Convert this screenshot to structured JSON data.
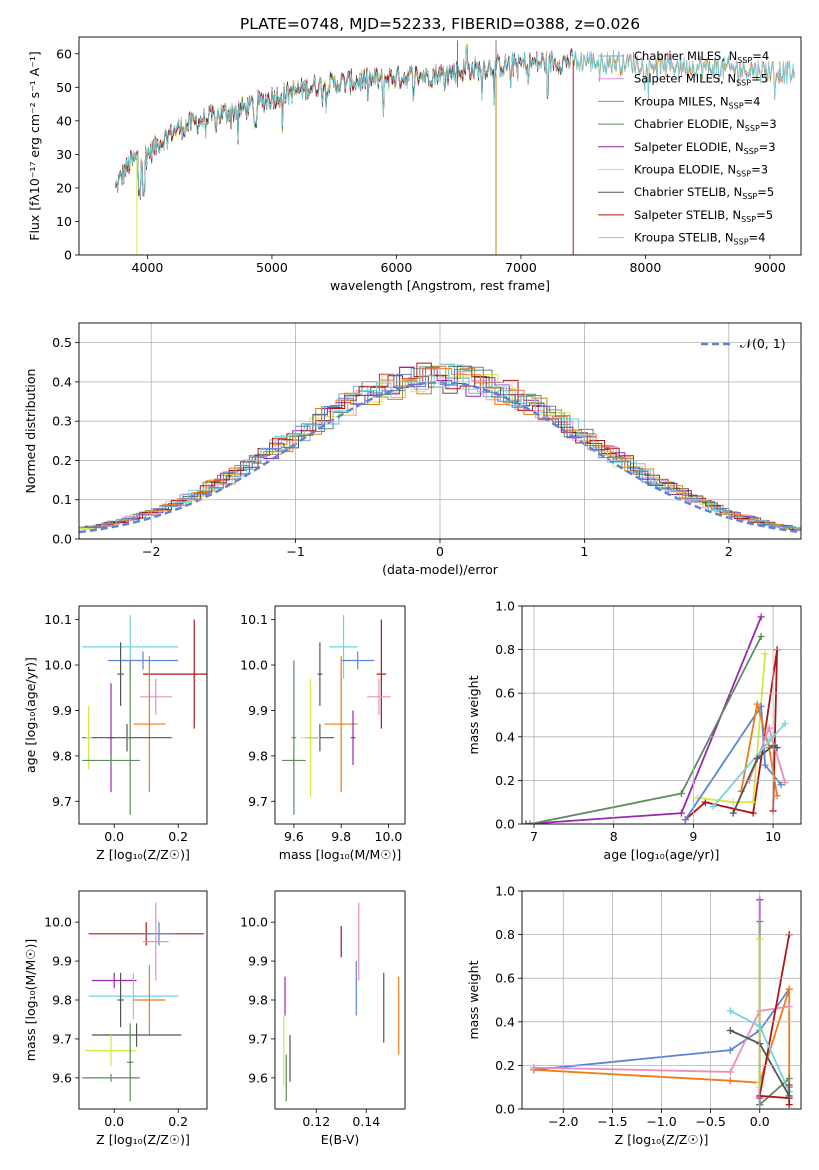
{
  "figure": {
    "title": "PLATE=0748, MJD=52233, FIBERID=0388, z=0.026"
  },
  "colors": {
    "Chabrier MILES": "#7aaed6",
    "Salpeter MILES": "#e88fd0",
    "Kroupa MILES": "#c9861c",
    "Chabrier ELODIE": "#5d8a5d",
    "Salpeter ELODIE": "#9b27b0",
    "Kroupa ELODIE": "#d6e64a",
    "Chabrier STELIB": "#555555",
    "Salpeter STELIB": "#b01515",
    "Kroupa STELIB": "#6fd6dc",
    "mean_blue": "#5b84d8",
    "mean_orange": "#ee7b16",
    "mean_pink": "#ec8fb8",
    "normal": "#5b84d8"
  },
  "chart_data": [
    {
      "id": "spectrum",
      "type": "line",
      "title": "PLATE=0748, MJD=52233, FIBERID=0388, z=0.026",
      "xlabel": "wavelength [Angstrom, rest frame]",
      "ylabel": "Flux [fλ10⁻¹⁷ erg cm⁻² s⁻¹ A⁻¹]",
      "xlim": [
        3450,
        9250
      ],
      "ylim": [
        0,
        65
      ],
      "xticks": [
        4000,
        5000,
        6000,
        7000,
        8000,
        9000
      ],
      "yticks": [
        0,
        10,
        20,
        30,
        40,
        50,
        60
      ],
      "legend_position": "upper-right",
      "series": [
        {
          "name": "Chabrier MILES, N",
          "sub": "SSP",
          "suffix": "=4",
          "key": "Chabrier MILES",
          "range": [
            3740,
            9200
          ]
        },
        {
          "name": "Salpeter MILES, N",
          "sub": "SSP",
          "suffix": "=5",
          "key": "Salpeter MILES",
          "range": [
            3740,
            9200
          ]
        },
        {
          "name": "Kroupa MILES, N",
          "sub": "SSP",
          "suffix": "=4",
          "key": "Kroupa MILES",
          "range": [
            3740,
            9200
          ]
        },
        {
          "name": "Chabrier ELODIE, N",
          "sub": "SSP",
          "suffix": "=3",
          "key": "Chabrier ELODIE",
          "range": [
            3740,
            6800
          ]
        },
        {
          "name": "Salpeter ELODIE, N",
          "sub": "SSP",
          "suffix": "=3",
          "key": "Salpeter ELODIE",
          "range": [
            3740,
            6800
          ]
        },
        {
          "name": "Kroupa ELODIE, N",
          "sub": "SSP",
          "suffix": "=3",
          "key": "Kroupa ELODIE",
          "range": [
            3740,
            6800
          ]
        },
        {
          "name": "Chabrier STELIB, N",
          "sub": "SSP",
          "suffix": "=5",
          "key": "Chabrier STELIB",
          "range": [
            3740,
            7420
          ]
        },
        {
          "name": "Salpeter STELIB, N",
          "sub": "SSP",
          "suffix": "=5",
          "key": "Salpeter STELIB",
          "range": [
            3740,
            7420
          ]
        },
        {
          "name": "Kroupa STELIB, N",
          "sub": "SSP",
          "suffix": "=4",
          "key": "Kroupa STELIB",
          "range": [
            3740,
            9200
          ]
        }
      ],
      "continuum": [
        [
          3740,
          20
        ],
        [
          3850,
          27
        ],
        [
          3950,
          30
        ],
        [
          4000,
          30
        ],
        [
          4200,
          37
        ],
        [
          4500,
          41
        ],
        [
          4800,
          44
        ],
        [
          5000,
          47
        ],
        [
          5300,
          50
        ],
        [
          5700,
          52
        ],
        [
          6000,
          53
        ],
        [
          6400,
          54
        ],
        [
          6700,
          56
        ],
        [
          7000,
          57
        ],
        [
          7500,
          58
        ],
        [
          8000,
          57
        ],
        [
          8500,
          56
        ],
        [
          9000,
          55
        ],
        [
          9200,
          54
        ]
      ]
    },
    {
      "id": "residuals",
      "type": "histogram",
      "xlabel": "(data-model)/error",
      "ylabel": "Normed distribution",
      "xlim": [
        -2.5,
        2.5
      ],
      "ylim": [
        0,
        0.55
      ],
      "xticks": [
        -2,
        -1,
        0,
        1,
        2
      ],
      "xticklabels": [
        "−2",
        "−1",
        "0",
        "1",
        "2"
      ],
      "yticks": [
        0,
        0.1,
        0.2,
        0.3,
        0.4,
        0.5
      ],
      "yticklabels": [
        "0.0",
        "0.1",
        "0.2",
        "0.3",
        "0.4",
        "0.5"
      ],
      "bin_width": 0.1,
      "normal_label": "𝒩(0, 1)",
      "grid": true
    },
    {
      "id": "age_vs_Z",
      "type": "errorbar",
      "xlabel": "Z [log₁₀(Z/Z☉)]",
      "ylabel": "age  [log₁₀(age/yr)]",
      "xlim": [
        -0.11,
        0.29
      ],
      "ylim": [
        9.65,
        10.13
      ],
      "xticks": [
        0.0,
        0.2
      ],
      "xticklabels": [
        "0.0",
        "0.2"
      ],
      "yticks": [
        9.7,
        9.8,
        9.9,
        10.0,
        10.1
      ],
      "yticklabels": [
        "9.7",
        "9.8",
        "9.9",
        "10.0",
        "10.1"
      ],
      "points": [
        {
          "key": "Kroupa STELIB",
          "x": 0.05,
          "xerr": 0.15,
          "y": 10.04,
          "yerr": 0.07
        },
        {
          "key": "mean_blue",
          "x": 0.09,
          "xerr": 0.11,
          "y": 10.01,
          "yerr": 0.02
        },
        {
          "key": "Chabrier STELIB",
          "x": 0.02,
          "xerr": 0.01,
          "y": 9.98,
          "yerr": 0.07
        },
        {
          "key": "Salpeter STELIB",
          "x": 0.25,
          "xerr": 0.16,
          "y": 9.98,
          "yerr": 0.12
        },
        {
          "key": "Salpeter ELODIE",
          "x": -0.01,
          "xerr": 0.01,
          "y": 9.84,
          "yerr": 0.12
        },
        {
          "key": "mean_pink",
          "x": 0.13,
          "xerr": 0.05,
          "y": 9.93,
          "yerr": 0.04
        },
        {
          "key": "mean_orange",
          "x": 0.11,
          "xerr": 0.05,
          "y": 9.87,
          "yerr": 0.15
        },
        {
          "key": "Chabrier STELIB",
          "x": 0.04,
          "xerr": 0.14,
          "y": 9.84,
          "yerr": 0.03
        },
        {
          "key": "Kroupa ELODIE",
          "x": -0.08,
          "xerr": 0.01,
          "y": 9.84,
          "yerr": 0.07
        },
        {
          "key": "Chabrier ELODIE",
          "x": 0.05,
          "xerr": 0.01,
          "y": 9.84,
          "yerr": 0.17
        },
        {
          "key": "Chabrier ELODIE",
          "x": -0.01,
          "xerr": 0.09,
          "y": 9.79,
          "yerr": 0.01
        }
      ]
    },
    {
      "id": "age_vs_mass",
      "type": "errorbar",
      "xlabel": "mass [log₁₀(M/M☉)]",
      "ylabel": "",
      "xlim": [
        9.52,
        10.07
      ],
      "ylim": [
        9.65,
        10.13
      ],
      "xticks": [
        9.6,
        9.8,
        10.0
      ],
      "xticklabels": [
        "9.6",
        "9.8",
        "10.0"
      ],
      "yticks": [
        9.7,
        9.8,
        9.9,
        10.0,
        10.1
      ],
      "yticklabels": [
        "9.7",
        "9.8",
        "9.9",
        "10.0",
        "10.1"
      ],
      "points": [
        {
          "key": "Kroupa STELIB",
          "x": 9.81,
          "xerr": 0.06,
          "y": 10.04,
          "yerr": 0.07
        },
        {
          "key": "mean_blue",
          "x": 9.87,
          "xerr": 0.07,
          "y": 10.01,
          "yerr": 0.02
        },
        {
          "key": "Chabrier STELIB",
          "x": 9.71,
          "xerr": 0.01,
          "y": 9.98,
          "yerr": 0.07
        },
        {
          "key": "Salpeter STELIB",
          "x": 9.97,
          "xerr": 0.02,
          "y": 9.98,
          "yerr": 0.12
        },
        {
          "key": "mean_pink",
          "x": 9.96,
          "xerr": 0.05,
          "y": 9.93,
          "yerr": 0.04
        },
        {
          "key": "mean_orange",
          "x": 9.8,
          "xerr": 0.07,
          "y": 9.87,
          "yerr": 0.15
        },
        {
          "key": "Salpeter ELODIE",
          "x": 9.85,
          "xerr": 0.01,
          "y": 9.84,
          "yerr": 0.06
        },
        {
          "key": "Chabrier STELIB",
          "x": 9.71,
          "xerr": 0.06,
          "y": 9.84,
          "yerr": 0.03
        },
        {
          "key": "Kroupa ELODIE",
          "x": 9.67,
          "xerr": 0.04,
          "y": 9.84,
          "yerr": 0.13
        },
        {
          "key": "Chabrier ELODIE",
          "x": 9.6,
          "xerr": 0.01,
          "y": 9.84,
          "yerr": 0.17
        },
        {
          "key": "Chabrier ELODIE",
          "x": 9.6,
          "xerr": 0.05,
          "y": 9.79,
          "yerr": 0.01
        }
      ]
    },
    {
      "id": "weight_vs_age",
      "type": "line",
      "xlabel": "age  [log₁₀(age/yr)]",
      "ylabel": "mass weight",
      "xlim": [
        6.85,
        10.35
      ],
      "ylim": [
        0,
        1.0
      ],
      "xticks": [
        7,
        8,
        9,
        10
      ],
      "yticks": [
        0,
        0.2,
        0.4,
        0.6,
        0.8,
        1.0
      ],
      "yticklabels": [
        "0.0",
        "0.2",
        "0.4",
        "0.6",
        "0.8",
        "1.0"
      ],
      "series": [
        {
          "key": "Salpeter ELODIE",
          "x": [
            6.9,
            8.85,
            9.85
          ],
          "y": [
            0.0,
            0.05,
            0.95
          ]
        },
        {
          "key": "Chabrier ELODIE",
          "x": [
            6.95,
            8.85,
            9.85
          ],
          "y": [
            0.0,
            0.14,
            0.86
          ]
        },
        {
          "key": "Salpeter STELIB",
          "x": [
            8.9,
            9.15,
            9.75,
            10.05,
            10.0
          ],
          "y": [
            0.02,
            0.1,
            0.05,
            0.8,
            0.06
          ]
        },
        {
          "key": "Kroupa ELODIE",
          "x": [
            9.05,
            9.5,
            9.75,
            9.9
          ],
          "y": [
            0.12,
            0.1,
            0.1,
            0.78
          ]
        },
        {
          "key": "mean_blue",
          "x": [
            8.9,
            9.85,
            9.9,
            10.1
          ],
          "y": [
            0.02,
            0.54,
            0.27,
            0.18
          ]
        },
        {
          "key": "mean_orange",
          "x": [
            9.6,
            9.8,
            9.95,
            10.05
          ],
          "y": [
            0.15,
            0.55,
            0.35,
            0.13
          ]
        },
        {
          "key": "mean_pink",
          "x": [
            9.7,
            9.95,
            10.15
          ],
          "y": [
            0.2,
            0.44,
            0.19
          ]
        },
        {
          "key": "Kroupa STELIB",
          "x": [
            9.25,
            9.95,
            10.15
          ],
          "y": [
            0.08,
            0.38,
            0.46
          ]
        },
        {
          "key": "Chabrier STELIB",
          "x": [
            9.5,
            9.8,
            10.0,
            10.05
          ],
          "y": [
            0.05,
            0.3,
            0.36,
            0.35
          ]
        }
      ]
    },
    {
      "id": "mass_vs_Z",
      "type": "errorbar",
      "xlabel": "Z [log₁₀(Z/Z☉)]",
      "ylabel": "mass [log₁₀(M/M☉)]",
      "xlim": [
        -0.11,
        0.29
      ],
      "ylim": [
        9.52,
        10.08
      ],
      "xticks": [
        0.0,
        0.2
      ],
      "xticklabels": [
        "0.0",
        "0.2"
      ],
      "yticks": [
        9.6,
        9.7,
        9.8,
        9.9,
        10.0
      ],
      "yticklabels": [
        "9.6",
        "9.7",
        "9.8",
        "9.9",
        "10.0"
      ],
      "points": [
        {
          "key": "Salpeter STELIB",
          "x": 0.1,
          "xerr": 0.18,
          "y": 9.97,
          "yerr": 0.03
        },
        {
          "key": "mean_blue",
          "x": 0.14,
          "xerr": 0.05,
          "y": 9.97,
          "yerr": 0.03
        },
        {
          "key": "mean_pink",
          "x": 0.13,
          "xerr": 0.04,
          "y": 9.95,
          "yerr": 0.1
        },
        {
          "key": "Salpeter ELODIE",
          "x": 0.0,
          "xerr": 0.07,
          "y": 9.85,
          "yerr": 0.02
        },
        {
          "key": "Kroupa STELIB",
          "x": 0.06,
          "xerr": 0.14,
          "y": 9.81,
          "yerr": 0.06
        },
        {
          "key": "mean_orange",
          "x": 0.11,
          "xerr": 0.05,
          "y": 9.8,
          "yerr": 0.09
        },
        {
          "key": "Chabrier STELIB",
          "x": 0.02,
          "xerr": 0.01,
          "y": 9.8,
          "yerr": 0.07
        },
        {
          "key": "Chabrier STELIB",
          "x": 0.07,
          "xerr": 0.14,
          "y": 9.71,
          "yerr": 0.03
        },
        {
          "key": "Kroupa ELODIE",
          "x": -0.01,
          "xerr": 0.08,
          "y": 9.67,
          "yerr": 0.04
        },
        {
          "key": "Chabrier ELODIE",
          "x": 0.05,
          "xerr": 0.01,
          "y": 9.64,
          "yerr": 0.1
        },
        {
          "key": "Chabrier ELODIE",
          "x": -0.01,
          "xerr": 0.09,
          "y": 9.6,
          "yerr": 0.01
        }
      ]
    },
    {
      "id": "mass_vs_ebv",
      "type": "errorbar",
      "xlabel": "E(B-V)",
      "ylabel": "",
      "xlim": [
        0.1035,
        0.1555
      ],
      "ylim": [
        9.52,
        10.08
      ],
      "xticks": [
        0.12,
        0.14
      ],
      "xticklabels": [
        "0.12",
        "0.14"
      ],
      "yticks": [
        9.6,
        9.7,
        9.8,
        9.9,
        10.0
      ],
      "yticklabels": [
        "9.6",
        "9.7",
        "9.8",
        "9.9",
        "10.0"
      ],
      "points": [
        {
          "key": "mean_pink",
          "x": 0.137,
          "xerr": 0.0,
          "y": 9.95,
          "yerr": 0.1
        },
        {
          "key": "Salpeter STELIB",
          "x": 0.13,
          "xerr": 0.0,
          "y": 9.95,
          "yerr": 0.04
        },
        {
          "key": "mean_blue",
          "x": 0.136,
          "xerr": 0.0,
          "y": 9.83,
          "yerr": 0.07
        },
        {
          "key": "Salpeter ELODIE",
          "x": 0.1075,
          "xerr": 0.0,
          "y": 9.81,
          "yerr": 0.05
        },
        {
          "key": "Chabrier STELIB",
          "x": 0.147,
          "xerr": 0.0,
          "y": 9.78,
          "yerr": 0.09
        },
        {
          "key": "mean_orange",
          "x": 0.153,
          "xerr": 0.0,
          "y": 9.76,
          "yerr": 0.1
        },
        {
          "key": "Kroupa ELODIE",
          "x": 0.107,
          "xerr": 0.0,
          "y": 9.67,
          "yerr": 0.09
        },
        {
          "key": "Chabrier STELIB",
          "x": 0.1095,
          "xerr": 0.0,
          "y": 9.65,
          "yerr": 0.06
        },
        {
          "key": "Chabrier ELODIE",
          "x": 0.108,
          "xerr": 0.0,
          "y": 9.6,
          "yerr": 0.06
        }
      ]
    },
    {
      "id": "weight_vs_Z",
      "type": "line",
      "xlabel": "Z [log₁₀(Z/Z☉)]",
      "ylabel": "mass weight",
      "xlim": [
        -2.42,
        0.42
      ],
      "ylim": [
        0,
        1.0
      ],
      "xticks": [
        -2.0,
        -1.5,
        -1.0,
        -0.5,
        0.0
      ],
      "xticklabels": [
        "−2.0",
        "−1.5",
        "−1.0",
        "−0.5",
        "0.0"
      ],
      "yticks": [
        0,
        0.2,
        0.4,
        0.6,
        0.8,
        1.0
      ],
      "yticklabels": [
        "0.0",
        "0.2",
        "0.4",
        "0.6",
        "0.8",
        "1.0"
      ],
      "series": [
        {
          "key": "mean_blue",
          "x": [
            -2.3,
            -0.3,
            0.0,
            0.3
          ],
          "y": [
            0.18,
            0.27,
            0.36,
            0.55
          ]
        },
        {
          "key": "mean_orange",
          "x": [
            -2.3,
            -0.3,
            0.0,
            0.3,
            0.3
          ],
          "y": [
            0.18,
            0.13,
            0.12,
            0.55,
            0.1
          ]
        },
        {
          "key": "mean_pink",
          "x": [
            -2.3,
            -0.3,
            0.0,
            0.3
          ],
          "y": [
            0.19,
            0.17,
            0.45,
            0.47
          ]
        },
        {
          "key": "Salpeter ELODIE",
          "x": [
            0.0,
            0.0,
            0.0
          ],
          "y": [
            0.96,
            0.05,
            0.02
          ]
        },
        {
          "key": "Chabrier ELODIE",
          "x": [
            0.0,
            0.0,
            0.3
          ],
          "y": [
            0.86,
            0.02,
            0.14
          ]
        },
        {
          "key": "Kroupa ELODIE",
          "x": [
            0.0,
            0.0,
            0.0
          ],
          "y": [
            0.78,
            0.12,
            0.1
          ]
        },
        {
          "key": "Salpeter STELIB",
          "x": [
            0.3,
            0.0,
            0.3,
            0.3
          ],
          "y": [
            0.8,
            0.06,
            0.05,
            0.02
          ]
        },
        {
          "key": "Kroupa STELIB",
          "x": [
            -0.3,
            0.0,
            0.3
          ],
          "y": [
            0.45,
            0.38,
            0.08
          ]
        },
        {
          "key": "Chabrier STELIB",
          "x": [
            -0.3,
            0.0,
            0.3,
            0.3
          ],
          "y": [
            0.36,
            0.3,
            0.06,
            0.11
          ]
        }
      ]
    }
  ]
}
